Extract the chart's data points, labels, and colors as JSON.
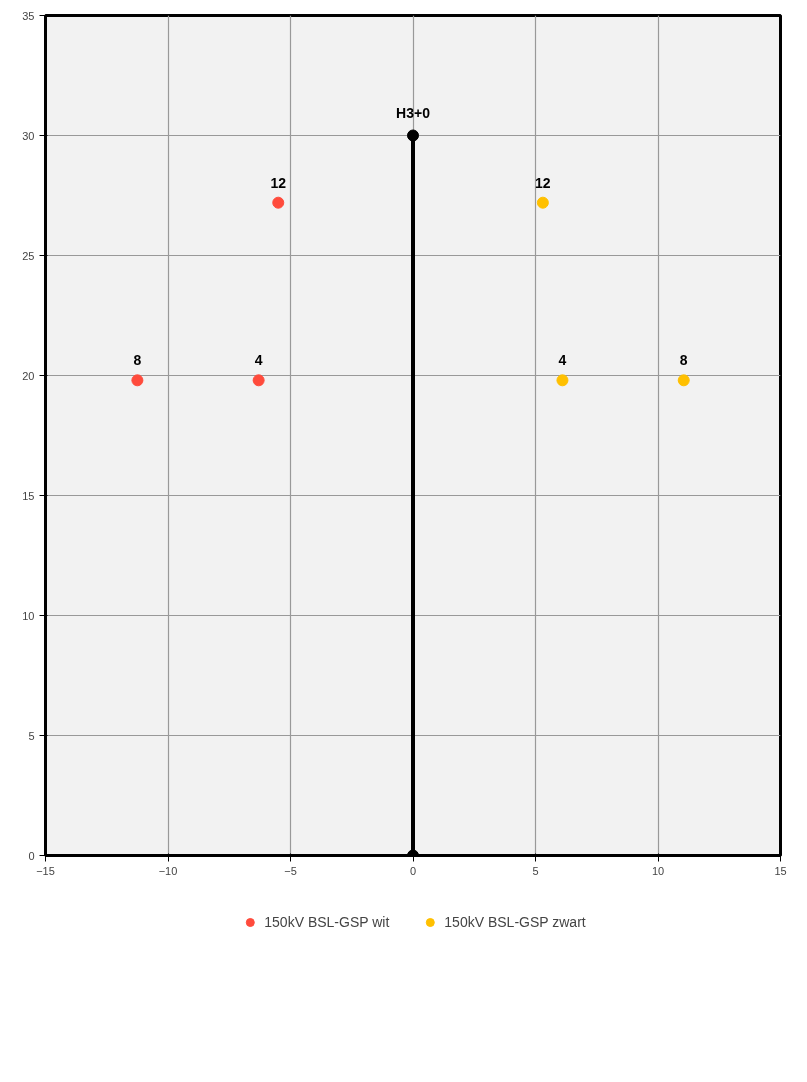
{
  "chart_data": {
    "type": "scatter",
    "xlim": [
      -15,
      15
    ],
    "ylim": [
      0,
      35
    ],
    "xticks": [
      -15,
      -10,
      -5,
      0,
      5,
      10,
      15
    ],
    "yticks": [
      0,
      5,
      10,
      15,
      20,
      25,
      30,
      35
    ],
    "grid": true,
    "legend": "bottom",
    "marker": "circle",
    "series": [
      {
        "name": "150kV BSL-GSP wit",
        "color": "#ff4b3c",
        "x": [
          -11.25,
          -6.3,
          -5.5
        ],
        "values": [
          19.8,
          19.8,
          27.2
        ]
      },
      {
        "name": "150kV BSL-GSP zwart",
        "color": "#ffc000",
        "x": [
          5.3,
          6.1,
          11.05
        ],
        "values": [
          27.2,
          19.8,
          19.8
        ]
      },
      {
        "type": "line",
        "color": "#000000",
        "x": [
          0,
          0
        ],
        "values": [
          0,
          30
        ]
      }
    ],
    "annotations": [
      {
        "text": "8",
        "x": -11.25,
        "y": 19.8
      },
      {
        "text": "4",
        "x": -6.3,
        "y": 19.8
      },
      {
        "text": "12",
        "x": -5.5,
        "y": 27.2
      },
      {
        "text": "12",
        "x": 5.3,
        "y": 27.2
      },
      {
        "text": "4",
        "x": 6.1,
        "y": 19.8
      },
      {
        "text": "8",
        "x": 11.05,
        "y": 19.8
      },
      {
        "text": "H3+0",
        "x": 0,
        "y": 30
      }
    ]
  }
}
